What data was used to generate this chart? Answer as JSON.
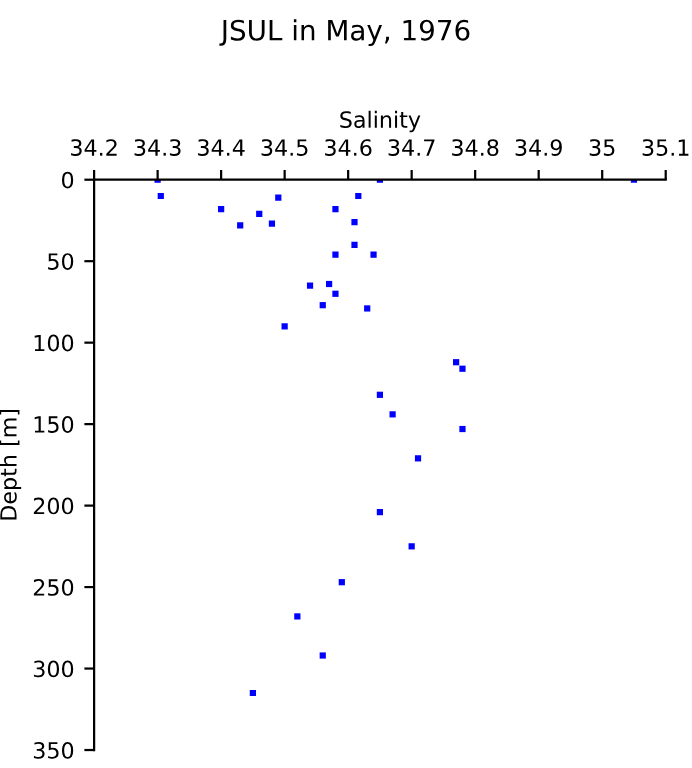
{
  "chart_data": {
    "type": "scatter",
    "title": "JSUL in May, 1976",
    "xlabel": "Salinity",
    "ylabel": "Depth [m]",
    "x": [
      34.3,
      34.65,
      35.05,
      34.305,
      34.616,
      34.49,
      34.4,
      34.58,
      34.46,
      34.43,
      34.48,
      34.61,
      34.61,
      34.58,
      34.64,
      34.54,
      34.57,
      34.58,
      34.56,
      34.63,
      34.5,
      34.77,
      34.78,
      34.65,
      34.67,
      34.78,
      34.71,
      34.65,
      34.7,
      34.59,
      34.52,
      34.56,
      34.45
    ],
    "series": [
      {
        "color": "#0000ff",
        "values": [
          0,
          0,
          0,
          10,
          10,
          11,
          18,
          18,
          21,
          28,
          27,
          26,
          40,
          46,
          46,
          65,
          64,
          70,
          77,
          79,
          90,
          112,
          116,
          132,
          144,
          153,
          171,
          204,
          225,
          247,
          268,
          292,
          315
        ]
      }
    ],
    "xlim": [
      34.2,
      35.1
    ],
    "xticks": [
      34.2,
      34.3,
      34.4,
      34.5,
      34.6,
      34.7,
      34.8,
      34.9,
      35,
      35.1
    ],
    "ylim": [
      350,
      0
    ],
    "yticks": [
      0,
      50,
      100,
      150,
      200,
      250,
      300,
      350
    ],
    "marker": "square",
    "grid": false,
    "legend": false
  }
}
